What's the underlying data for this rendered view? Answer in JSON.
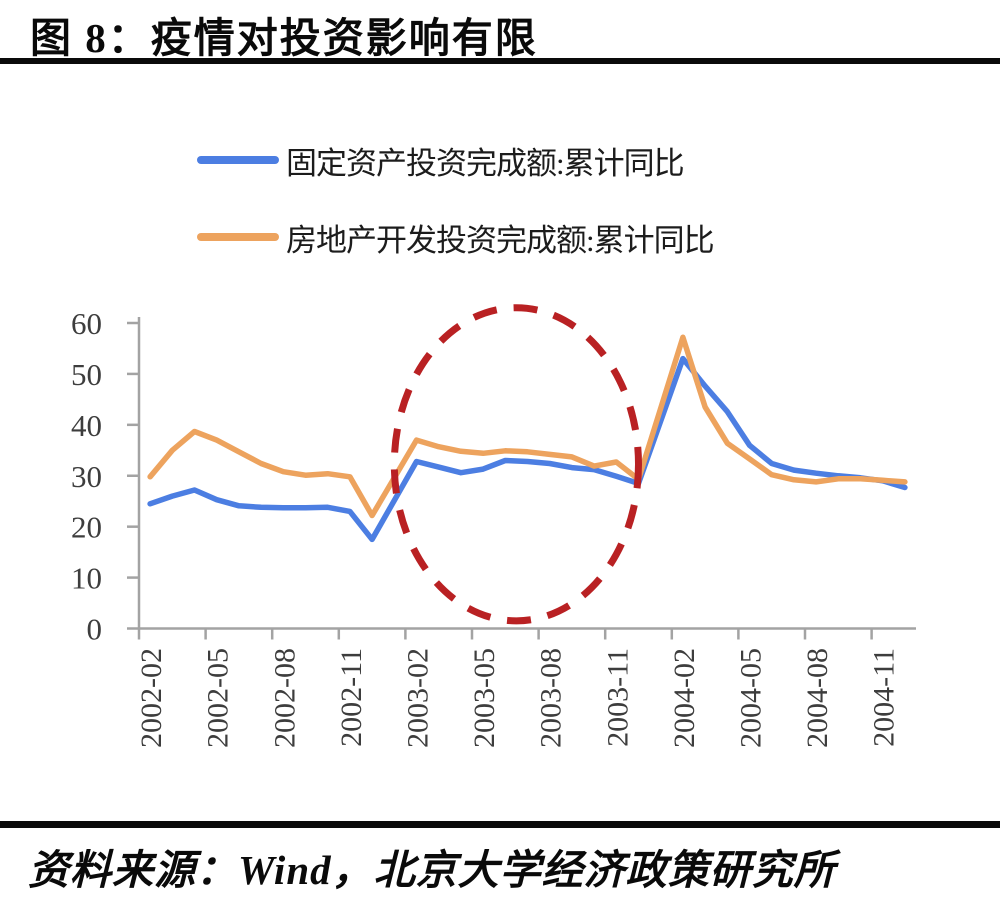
{
  "chart_data": {
    "type": "line",
    "title": "图 8：疫情对投资影响有限",
    "source": "资料来源：Wind，北京大学经济政策研究所",
    "legend_position": "top",
    "grid": false,
    "ylim": [
      0,
      60
    ],
    "y_ticks": [
      0,
      10,
      20,
      30,
      40,
      50,
      60
    ],
    "x_tick_labels": [
      "2002-02",
      "2002-05",
      "2002-08",
      "2002-11",
      "2003-02",
      "2003-05",
      "2003-08",
      "2003-11",
      "2004-02",
      "2004-05",
      "2004-08",
      "2004-11"
    ],
    "categories": [
      "2002-02",
      "2002-03",
      "2002-04",
      "2002-05",
      "2002-06",
      "2002-07",
      "2002-08",
      "2002-09",
      "2002-10",
      "2002-11",
      "2002-12",
      "2003-02",
      "2003-03",
      "2003-04",
      "2003-05",
      "2003-06",
      "2003-07",
      "2003-08",
      "2003-09",
      "2003-10",
      "2003-11",
      "2003-12",
      "2004-02",
      "2004-03",
      "2004-04",
      "2004-05",
      "2004-06",
      "2004-07",
      "2004-08",
      "2004-09",
      "2004-10",
      "2004-11",
      "2004-12"
    ],
    "series": [
      {
        "name": "固定资产投资完成额:累计同比",
        "color": "#4c7ee2",
        "values": [
          24.5,
          26.0,
          27.2,
          25.3,
          24.1,
          23.8,
          23.7,
          23.7,
          23.8,
          23.0,
          17.5,
          32.8,
          31.7,
          30.6,
          31.3,
          33.0,
          32.8,
          32.4,
          31.6,
          31.2,
          29.9,
          28.5,
          53.0,
          47.6,
          42.6,
          36.0,
          32.4,
          31.1,
          30.5,
          30.0,
          29.6,
          29.0,
          27.7
        ]
      },
      {
        "name": "房地产开发投资完成额:累计同比",
        "color": "#eda35e",
        "values": [
          29.8,
          35.0,
          38.7,
          37.0,
          34.7,
          32.4,
          30.8,
          30.1,
          30.4,
          29.8,
          22.2,
          37.0,
          35.7,
          34.8,
          34.4,
          34.9,
          34.7,
          34.2,
          33.7,
          31.9,
          32.7,
          29.3,
          57.2,
          43.5,
          36.4,
          33.3,
          30.2,
          29.2,
          28.8,
          29.4,
          29.4,
          29.1,
          28.8
        ]
      }
    ],
    "annotation_ellipse": {
      "style": "dashed",
      "color": "#b92123",
      "x_from": "2003-01",
      "x_to": "2003-12",
      "y_from": 1.5,
      "y_to": 63
    },
    "axis_color": "#a3a3a3",
    "tick_label_color": "#3d3d3d"
  }
}
